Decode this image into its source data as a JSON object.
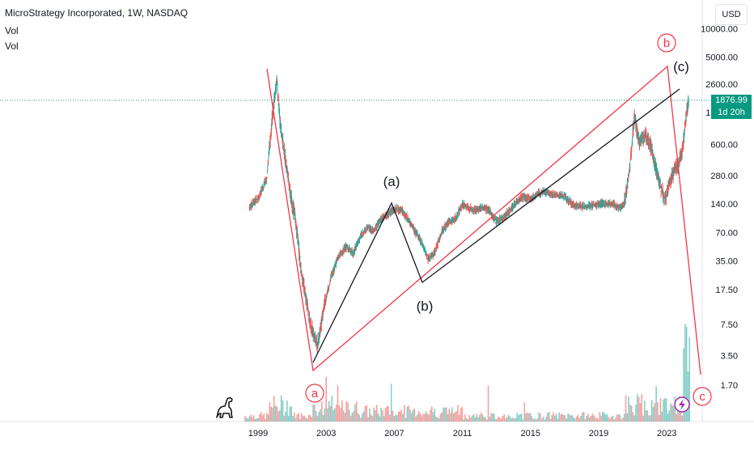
{
  "header": {
    "title": "MicroStrategy Incorporated, 1W, NASDAQ",
    "indicator_1": "Vol",
    "indicator_2": "Vol"
  },
  "currency_button": "USD",
  "last_price": {
    "value": "1876.99",
    "countdown": "1d 20h"
  },
  "chart_data": {
    "type": "line",
    "title": "MicroStrategy Incorporated, 1W, NASDAQ",
    "y_scale": "log",
    "y_ticks": [
      "10000.00",
      "5000.00",
      "2600.00",
      "1300.00",
      "600.00",
      "280.00",
      "140.00",
      "70.00",
      "35.00",
      "17.50",
      "7.50",
      "3.50",
      "1.70"
    ],
    "x_ticks": [
      "1999",
      "2003",
      "2007",
      "2011",
      "2015",
      "2019",
      "2023"
    ],
    "series": [
      {
        "values": [
          [
            1998.5,
            130
          ],
          [
            1999.0,
            160
          ],
          [
            1999.5,
            260
          ],
          [
            1999.9,
            1500
          ],
          [
            2000.1,
            2800
          ],
          [
            2000.3,
            1000
          ],
          [
            2000.6,
            420
          ],
          [
            2000.9,
            170
          ],
          [
            2001.2,
            95
          ],
          [
            2001.5,
            30
          ],
          [
            2001.8,
            14
          ],
          [
            2002.1,
            7
          ],
          [
            2002.5,
            4.5
          ],
          [
            2002.9,
            12
          ],
          [
            2003.3,
            24
          ],
          [
            2003.7,
            38
          ],
          [
            2004.2,
            50
          ],
          [
            2004.6,
            42
          ],
          [
            2005.0,
            62
          ],
          [
            2005.4,
            80
          ],
          [
            2005.8,
            72
          ],
          [
            2006.2,
            95
          ],
          [
            2006.6,
            108
          ],
          [
            2007.0,
            125
          ],
          [
            2007.4,
            118
          ],
          [
            2007.8,
            98
          ],
          [
            2008.2,
            72
          ],
          [
            2008.6,
            55
          ],
          [
            2009.0,
            36
          ],
          [
            2009.4,
            44
          ],
          [
            2009.8,
            72
          ],
          [
            2010.2,
            90
          ],
          [
            2010.6,
            98
          ],
          [
            2011.0,
            140
          ],
          [
            2011.4,
            125
          ],
          [
            2011.8,
            118
          ],
          [
            2012.2,
            130
          ],
          [
            2012.6,
            115
          ],
          [
            2013.0,
            90
          ],
          [
            2013.4,
            100
          ],
          [
            2013.8,
            120
          ],
          [
            2014.2,
            150
          ],
          [
            2014.6,
            165
          ],
          [
            2015.0,
            158
          ],
          [
            2015.4,
            178
          ],
          [
            2015.8,
            185
          ],
          [
            2016.2,
            178
          ],
          [
            2016.6,
            175
          ],
          [
            2017.0,
            170
          ],
          [
            2017.4,
            140
          ],
          [
            2017.8,
            135
          ],
          [
            2018.2,
            130
          ],
          [
            2018.6,
            135
          ],
          [
            2019.0,
            140
          ],
          [
            2019.4,
            142
          ],
          [
            2019.8,
            140
          ],
          [
            2020.2,
            125
          ],
          [
            2020.5,
            140
          ],
          [
            2020.8,
            300
          ],
          [
            2021.1,
            1150
          ],
          [
            2021.4,
            620
          ],
          [
            2021.7,
            720
          ],
          [
            2022.0,
            620
          ],
          [
            2022.3,
            360
          ],
          [
            2022.6,
            220
          ],
          [
            2022.9,
            155
          ],
          [
            2023.1,
            220
          ],
          [
            2023.4,
            300
          ],
          [
            2023.7,
            360
          ],
          [
            2023.9,
            500
          ],
          [
            2024.0,
            700
          ],
          [
            2024.2,
            1400
          ],
          [
            2024.3,
            1877
          ]
        ]
      }
    ],
    "volume_note": "weekly volume histogram",
    "annotations": {
      "black_labels": [
        "(a)",
        "(b)",
        "(c)"
      ],
      "red_labels": [
        "a",
        "b",
        "c"
      ]
    },
    "colors": {
      "up": "#26a69a",
      "down": "#ef5350",
      "red_line": "#f23645",
      "black_line": "#131722",
      "last_price": "#089981"
    }
  }
}
